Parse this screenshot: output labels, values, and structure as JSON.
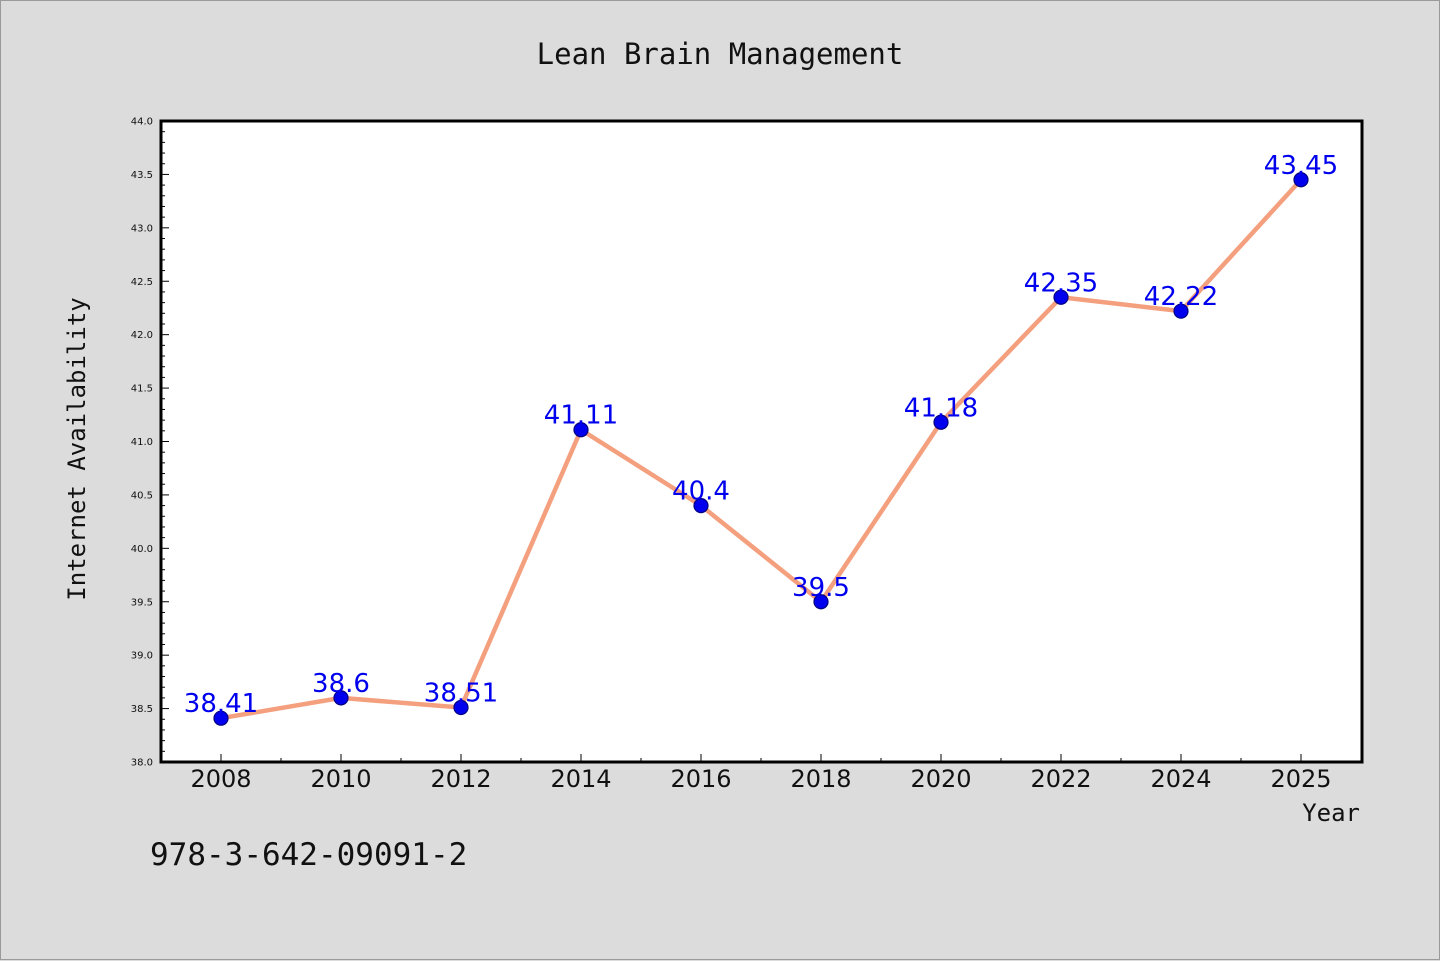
{
  "colors": {
    "background": "#dcdcdc",
    "plot_background": "#ffffff",
    "line": "#f4a07e",
    "marker": "#0000ee",
    "marker_edge": "#000080",
    "data_label": "#0000ee"
  },
  "footer": {
    "isbn": "978-3-642-09091-2"
  },
  "chart_data": {
    "type": "line",
    "title": "Lean Brain Management",
    "xlabel": "Year",
    "ylabel": "Internet Availability",
    "categories": [
      "2008",
      "2010",
      "2012",
      "2014",
      "2016",
      "2018",
      "2020",
      "2022",
      "2024",
      "2025"
    ],
    "series": [
      {
        "values": [
          38.41,
          38.6,
          38.51,
          41.11,
          40.4,
          39.5,
          41.18,
          42.35,
          42.22,
          43.45
        ]
      }
    ],
    "data_labels": [
      "38.41",
      "38.6",
      "38.51",
      "41.11",
      "40.4",
      "39.5",
      "41.18",
      "42.35",
      "42.22",
      "43.45"
    ],
    "ylim": [
      38.0,
      44.0
    ],
    "yticks": [
      "38.0",
      "38.5",
      "39.0",
      "39.5",
      "40.0",
      "40.5",
      "41.0",
      "41.5",
      "42.0",
      "42.5",
      "43.0",
      "43.5",
      "44.0"
    ],
    "grid": false,
    "legend": "none"
  }
}
